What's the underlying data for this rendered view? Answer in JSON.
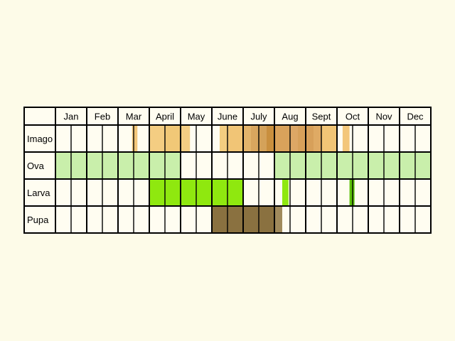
{
  "months": [
    "Jan",
    "Feb",
    "Mar",
    "April",
    "May",
    "June",
    "July",
    "Aug",
    "Sept",
    "Oct",
    "Nov",
    "Dec"
  ],
  "rows": [
    {
      "label": "Imago",
      "segments": [
        {
          "start": 2.45,
          "end": 2.62,
          "color": "#f3c77a"
        },
        {
          "start": 3.0,
          "end": 3.5,
          "color": "#f4cd82"
        },
        {
          "start": 3.5,
          "end": 4.0,
          "color": "#f1c877"
        },
        {
          "start": 4.0,
          "end": 4.3,
          "color": "#f3cd83"
        },
        {
          "start": 5.25,
          "end": 5.5,
          "color": "#f3cd80"
        },
        {
          "start": 5.5,
          "end": 6.0,
          "color": "#f1c576"
        },
        {
          "start": 6.0,
          "end": 6.25,
          "color": "#e3b46b"
        },
        {
          "start": 6.25,
          "end": 6.5,
          "color": "#d9a65e"
        },
        {
          "start": 6.5,
          "end": 6.75,
          "color": "#d4a25a"
        },
        {
          "start": 6.75,
          "end": 7.0,
          "color": "#c98f3e"
        },
        {
          "start": 7.0,
          "end": 7.5,
          "color": "#d9a25b"
        },
        {
          "start": 7.5,
          "end": 7.75,
          "color": "#dda765"
        },
        {
          "start": 7.75,
          "end": 8.25,
          "color": "#d7a05a"
        },
        {
          "start": 8.25,
          "end": 8.5,
          "color": "#dfaa64"
        },
        {
          "start": 8.5,
          "end": 9.0,
          "color": "#f1c576"
        },
        {
          "start": 9.18,
          "end": 9.4,
          "color": "#f3c77a"
        }
      ]
    },
    {
      "label": "Ova",
      "segments": [
        {
          "start": 0.0,
          "end": 4.0,
          "color": "#c9efab"
        },
        {
          "start": 7.0,
          "end": 12.0,
          "color": "#c9efab"
        }
      ]
    },
    {
      "label": "Larva",
      "segments": [
        {
          "start": 3.0,
          "end": 6.0,
          "color": "#8fe80f"
        },
        {
          "start": 7.25,
          "end": 7.45,
          "color": "#8fe80f"
        },
        {
          "start": 9.4,
          "end": 9.56,
          "color": "#5cc00a"
        }
      ]
    },
    {
      "label": "Pupa",
      "segments": [
        {
          "start": 5.0,
          "end": 7.0,
          "color": "#8a7140"
        },
        {
          "start": 7.0,
          "end": 7.25,
          "color": "#a08a5c"
        }
      ]
    }
  ]
}
